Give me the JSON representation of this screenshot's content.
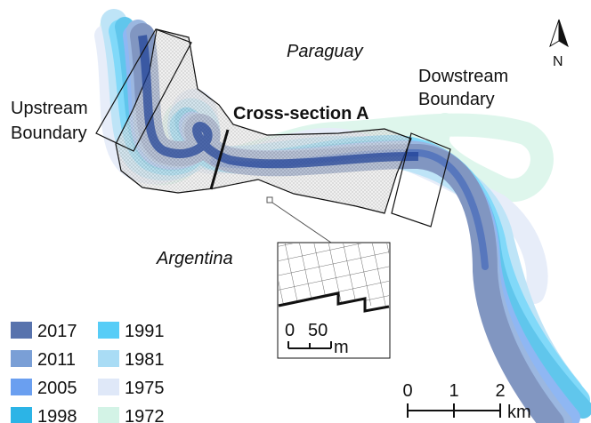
{
  "labels": {
    "paraguay": "Paraguay",
    "argentina": "Argentina",
    "upstream": [
      "Upstream",
      "Boundary"
    ],
    "downstream": [
      "Dowstream",
      "Boundary"
    ],
    "cross_section": "Cross-section A",
    "north": "N"
  },
  "legend": [
    {
      "label": "2017",
      "color": "#5873ad"
    },
    {
      "label": "2011",
      "color": "#7a9fd6"
    },
    {
      "label": "2005",
      "color": "#6a9ff0"
    },
    {
      "label": "1998",
      "color": "#2cb4e6"
    },
    {
      "label": "1991",
      "color": "#57cdf7"
    },
    {
      "label": "1981",
      "color": "#a9dcf5"
    },
    {
      "label": "1975",
      "color": "#dfe8f8"
    },
    {
      "label": "1972",
      "color": "#d3f3e6"
    }
  ],
  "scale_bar": {
    "ticks": [
      0,
      1,
      2
    ],
    "unit": "km"
  },
  "inset_scale": {
    "ticks": [
      0,
      50
    ],
    "unit": "m"
  }
}
